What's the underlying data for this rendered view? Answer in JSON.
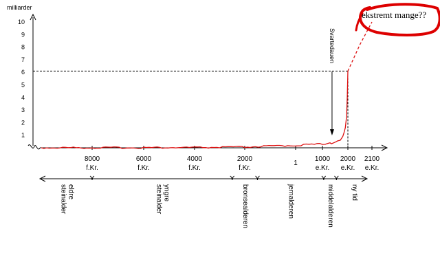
{
  "chart_data": {
    "type": "line",
    "ylabel": "milliarder",
    "y_ticks": [
      "1",
      "2",
      "3",
      "4",
      "5",
      "6",
      "7",
      "8",
      "9",
      "10"
    ],
    "ylim": [
      0,
      10
    ],
    "x_ticks": [
      {
        "year": -8000,
        "line1": "8000",
        "line2": "f.Kr."
      },
      {
        "year": -6000,
        "line1": "6000",
        "line2": "f.Kr."
      },
      {
        "year": -4000,
        "line1": "4000",
        "line2": "f.Kr."
      },
      {
        "year": -2000,
        "line1": "2000",
        "line2": "f.Kr."
      },
      {
        "year": 1,
        "line1": "1",
        "line2": ""
      },
      {
        "year": 1000,
        "line1": "1000",
        "line2": "e.Kr."
      },
      {
        "year": 2000,
        "line1": "2000",
        "line2": "e.Kr."
      },
      {
        "year": 2100,
        "line1": "2100",
        "line2": "e.Kr."
      }
    ],
    "series": [
      {
        "color": "#dd1111",
        "x": [
          -10000,
          -8000,
          -6000,
          -4000,
          -2000,
          1,
          1000,
          1300,
          1350,
          1400,
          1500,
          1600,
          1700,
          1800,
          1850,
          1900,
          1950,
          1975,
          2000
        ],
        "y": [
          0.005,
          0.008,
          0.01,
          0.02,
          0.06,
          0.2,
          0.3,
          0.4,
          0.32,
          0.36,
          0.45,
          0.55,
          0.6,
          0.9,
          1.2,
          1.6,
          2.5,
          4.0,
          6.1
        ]
      },
      {
        "color": "#dd1111",
        "style": "dashed",
        "x": [
          2000,
          2050,
          2100
        ],
        "y": [
          6.1,
          8.2,
          10.0
        ]
      }
    ],
    "reference": {
      "year": 2000,
      "value": 6.1
    },
    "annotation": {
      "text": "Svartedauen",
      "year": 1350
    },
    "callout": {
      "text": "ekstremt mange??",
      "color": "#dd0000"
    },
    "periods": [
      {
        "label": "eldre steinalder",
        "lines": [
          "eldre",
          "steinalder"
        ],
        "from": -10000,
        "to": -8000
      },
      {
        "label": "yngre steinalder",
        "lines": [
          "yngre",
          "steinalder"
        ],
        "from": -8000,
        "to": -2500
      },
      {
        "label": "bronsealderen",
        "lines": [
          "bronsealderen"
        ],
        "from": -2500,
        "to": -1500
      },
      {
        "label": "jernalderen",
        "lines": [
          "jernalderen"
        ],
        "from": -1500,
        "to": 1050
      },
      {
        "label": "middelalderen",
        "lines": [
          "middelalderen"
        ],
        "from": 1050,
        "to": 1550
      },
      {
        "label": "ny tid",
        "lines": [
          "ny tid"
        ],
        "from": 1550,
        "to": 2100
      }
    ]
  }
}
